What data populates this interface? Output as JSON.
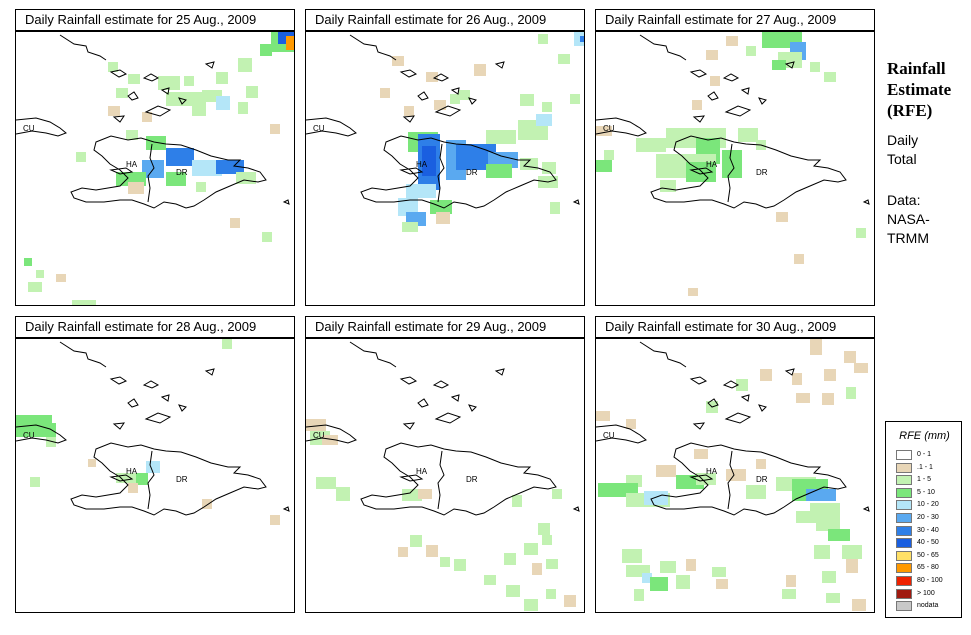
{
  "panels": [
    {
      "title": "Daily Rainfall estimate for  25 Aug., 2009",
      "labels": [
        "CU",
        "HA",
        "DR"
      ]
    },
    {
      "title": "Daily Rainfall estimate for  26 Aug., 2009",
      "labels": [
        "CU",
        "HA",
        "DR"
      ]
    },
    {
      "title": "Daily Rainfall estimate for  27 Aug., 2009",
      "labels": [
        "CU",
        "HA",
        "DR"
      ]
    },
    {
      "title": "Daily Rainfall estimate for  28 Aug., 2009",
      "labels": [
        "CU",
        "HA",
        "DR"
      ]
    },
    {
      "title": "Daily Rainfall estimate for  29 Aug., 2009",
      "labels": [
        "CU",
        "HA",
        "DR"
      ]
    },
    {
      "title": "Daily Rainfall estimate for  30 Aug., 2009",
      "labels": [
        "CU",
        "HA",
        "DR"
      ]
    }
  ],
  "side": {
    "title": "Rainfall\nEstimate\n(RFE)",
    "period": "Daily\nTotal",
    "source": "Data:\nNASA-\nTRMM"
  },
  "legend": {
    "title": "RFE (mm)",
    "classes": [
      {
        "label": "0 - 1",
        "color": "#ffffff"
      },
      {
        "label": ".1 - 1",
        "color": "#e8d6b7"
      },
      {
        "label": "1 - 5",
        "color": "#c2f2b2"
      },
      {
        "label": "5 - 10",
        "color": "#7be67b"
      },
      {
        "label": "10 - 20",
        "color": "#b4e6f8"
      },
      {
        "label": "20 - 30",
        "color": "#5aa9f0"
      },
      {
        "label": "30 - 40",
        "color": "#2e7fe8"
      },
      {
        "label": "40 - 50",
        "color": "#1a5fe0"
      },
      {
        "label": "50 - 65",
        "color": "#ffe066"
      },
      {
        "label": "65 - 80",
        "color": "#ff9900"
      },
      {
        "label": "80 - 100",
        "color": "#ee2200"
      },
      {
        "label": "> 100",
        "color": "#a01a10"
      },
      {
        "label": "nodata",
        "color": "#c8c8c8"
      }
    ]
  }
}
